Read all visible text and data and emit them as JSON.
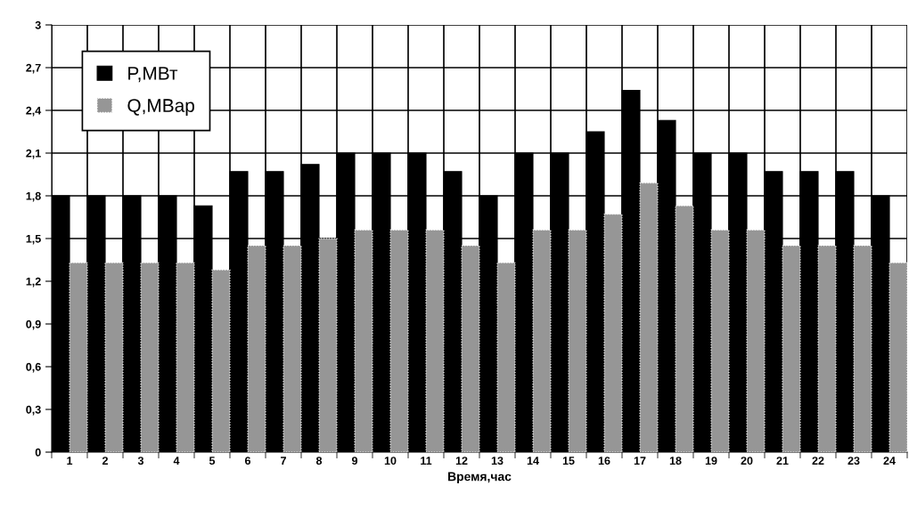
{
  "chart_data": {
    "type": "bar",
    "xlabel": "Время,час",
    "categories": [
      "1",
      "2",
      "3",
      "4",
      "5",
      "6",
      "7",
      "8",
      "9",
      "10",
      "11",
      "12",
      "13",
      "14",
      "15",
      "16",
      "17",
      "18",
      "19",
      "20",
      "21",
      "22",
      "23",
      "24"
    ],
    "series": [
      {
        "name": "P,МВт",
        "color": "#000000",
        "values": [
          1.8,
          1.8,
          1.8,
          1.8,
          1.73,
          1.97,
          1.97,
          2.02,
          2.1,
          2.1,
          2.1,
          1.97,
          1.8,
          2.1,
          2.1,
          2.25,
          2.54,
          2.33,
          2.1,
          2.1,
          1.97,
          1.97,
          1.97,
          1.8
        ]
      },
      {
        "name": "Q,МВар",
        "color": "#969696",
        "values": [
          1.33,
          1.33,
          1.33,
          1.33,
          1.28,
          1.45,
          1.45,
          1.5,
          1.56,
          1.56,
          1.56,
          1.45,
          1.33,
          1.56,
          1.56,
          1.67,
          1.89,
          1.73,
          1.56,
          1.56,
          1.45,
          1.45,
          1.45,
          1.33
        ]
      }
    ],
    "ylim": [
      0,
      3
    ],
    "yticks": [
      {
        "value": 0,
        "label": "0"
      },
      {
        "value": 0.3,
        "label": "0,3"
      },
      {
        "value": 0.6,
        "label": "0,6"
      },
      {
        "value": 0.9,
        "label": "0,9"
      },
      {
        "value": 1.2,
        "label": "1,2"
      },
      {
        "value": 1.5,
        "label": "1,5"
      },
      {
        "value": 1.8,
        "label": "1,8"
      },
      {
        "value": 2.1,
        "label": "2,1"
      },
      {
        "value": 2.4,
        "label": "2,4"
      },
      {
        "value": 2.7,
        "label": "2,7"
      },
      {
        "value": 3,
        "label": "3"
      }
    ],
    "grid": true,
    "legend": "top left"
  }
}
